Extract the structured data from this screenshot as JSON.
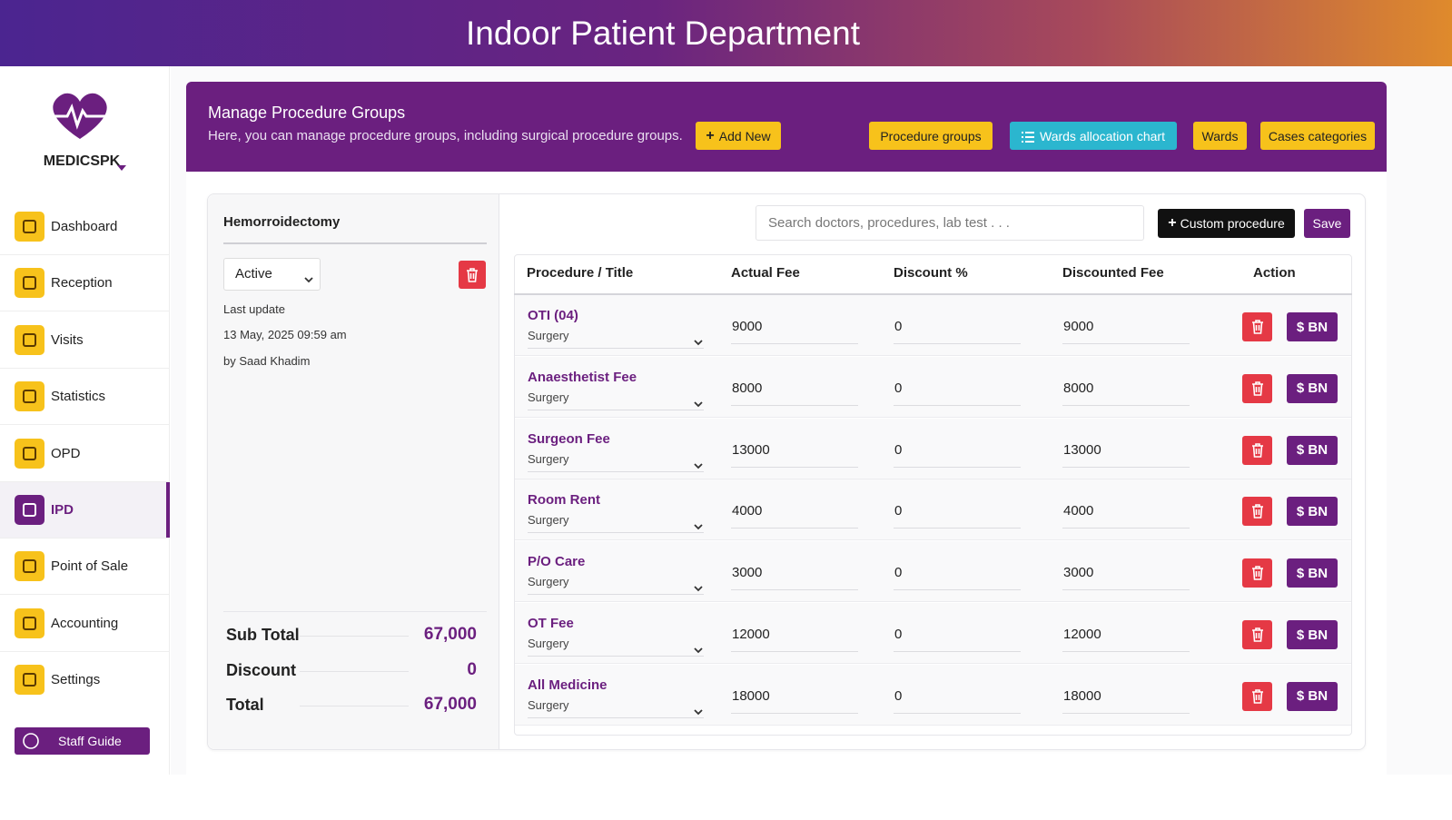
{
  "header": {
    "title": "Indoor Patient Department"
  },
  "sidebar": {
    "brand": "MEDICSPK",
    "items": [
      "Dashboard",
      "Reception",
      "Visits",
      "Statistics",
      "OPD",
      "IPD",
      "Point of Sale",
      "Accounting",
      "Settings"
    ],
    "guide": "Staff Guide"
  },
  "panel": {
    "title": "Manage Procedure Groups",
    "description": "Here, you can manage procedure groups, including surgical procedure groups.",
    "add_button": "Add New",
    "nav_buttons": [
      "Procedure groups",
      "Wards allocation chart",
      "Wards",
      "Cases categories"
    ]
  },
  "group": {
    "name": "Hemorroidectomy",
    "status": "Active",
    "last_update_label": "Last update",
    "last_update": "13 May, 2025 09:59 am",
    "updated_by": "by Saad Khadim",
    "summary": [
      {
        "label": "Sub Total",
        "value": "67,000"
      },
      {
        "label": "Discount",
        "value": "0"
      },
      {
        "label": "Total",
        "value": "67,000"
      }
    ]
  },
  "procedures": {
    "search_placeholder": "Search doctors, procedures, lab test . . .",
    "custom_button": "Custom procedure",
    "save_button": "Save",
    "columns": [
      "Procedure / Title",
      "Actual Fee",
      "Discount %",
      "Discounted Fee",
      "Action"
    ],
    "rows": [
      {
        "title": "OTI (04)",
        "category": "Surgery",
        "actual_fee": 9000,
        "discount": 0,
        "discounted_fee": 9000,
        "action": "$ BN"
      },
      {
        "title": "Anaesthetist Fee",
        "category": "Surgery",
        "actual_fee": 8000,
        "discount": 0,
        "discounted_fee": 8000,
        "action": "$ BN"
      },
      {
        "title": "Surgeon Fee",
        "category": "Surgery",
        "actual_fee": 13000,
        "discount": 0,
        "discounted_fee": 13000,
        "action": "$ BN"
      },
      {
        "title": "Room Rent",
        "category": "Surgery",
        "actual_fee": 4000,
        "discount": 0,
        "discounted_fee": 4000,
        "action": "$ BN"
      },
      {
        "title": "P/O Care",
        "category": "Surgery",
        "actual_fee": 3000,
        "discount": 0,
        "discounted_fee": 3000,
        "action": "$ BN"
      },
      {
        "title": "OT Fee",
        "category": "Surgery",
        "actual_fee": 12000,
        "discount": 0,
        "discounted_fee": 12000,
        "action": "$ BN"
      },
      {
        "title": "All Medicine",
        "category": "Surgery",
        "actual_fee": 18000,
        "discount": 0,
        "discounted_fee": 18000,
        "action": "$ BN"
      }
    ]
  }
}
